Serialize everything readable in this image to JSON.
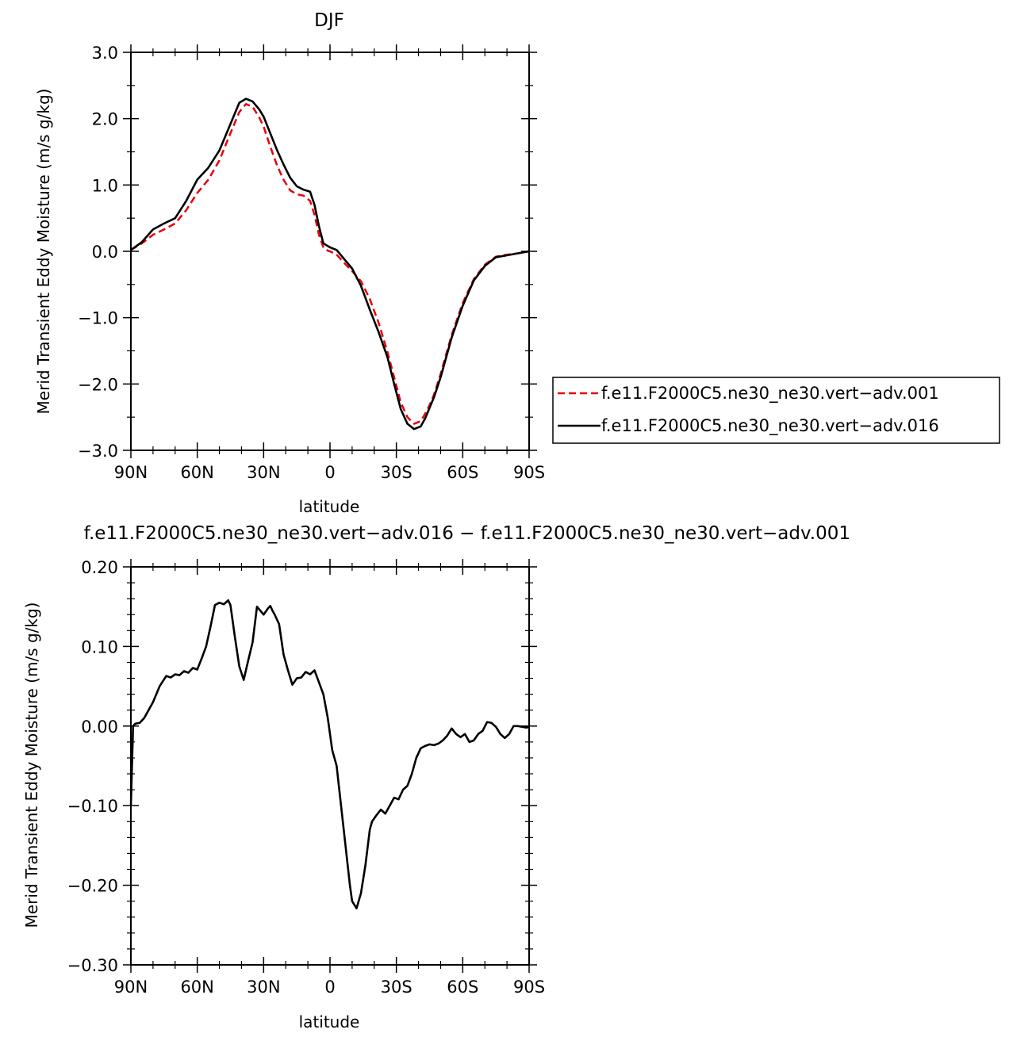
{
  "chart_data": [
    {
      "type": "line",
      "title": "DJF",
      "xlabel": "latitude",
      "ylabel": "Merid Transient Eddy Moisture (m/s g/kg)",
      "xlim": [
        -90,
        90
      ],
      "ylim": [
        -3.0,
        3.0
      ],
      "x_tick_values": [
        -90,
        -60,
        -30,
        0,
        30,
        60,
        90
      ],
      "x_tick_labels": [
        "90N",
        "60N",
        "30N",
        "0",
        "30S",
        "60S",
        "90S"
      ],
      "y_tick_values": [
        -3,
        -2,
        -1,
        0,
        1,
        2,
        3
      ],
      "y_tick_labels": [
        "−3.0",
        "−2.0",
        "−1.0",
        "0.0",
        "1.0",
        "2.0",
        "3.0"
      ],
      "grid": false,
      "legend_position": "right",
      "series": [
        {
          "name": "f.e11.F2000C5.ne30_ne30.vert−adv.001",
          "color": "#e8000b",
          "dash": "dashed",
          "x": [
            -90,
            -85,
            -80,
            -75,
            -70,
            -65,
            -60,
            -55,
            -50,
            -45,
            -41,
            -38,
            -35,
            -32,
            -30,
            -27,
            -24,
            -21,
            -18,
            -15,
            -12,
            -9,
            -7,
            -5,
            -3,
            -1,
            0,
            3,
            6,
            10,
            14,
            18,
            22,
            26,
            29,
            32,
            35,
            38,
            41,
            43,
            45,
            47,
            50,
            55,
            60,
            65,
            70,
            75,
            80,
            85,
            90
          ],
          "y": [
            0.02,
            0.12,
            0.25,
            0.33,
            0.42,
            0.62,
            0.88,
            1.08,
            1.37,
            1.78,
            2.1,
            2.22,
            2.18,
            2.02,
            1.88,
            1.58,
            1.3,
            1.08,
            0.92,
            0.86,
            0.84,
            0.76,
            0.55,
            0.25,
            0.06,
            0.01,
            0.0,
            -0.05,
            -0.16,
            -0.3,
            -0.45,
            -0.72,
            -1.08,
            -1.52,
            -1.9,
            -2.28,
            -2.5,
            -2.6,
            -2.56,
            -2.45,
            -2.32,
            -2.16,
            -1.85,
            -1.26,
            -0.78,
            -0.42,
            -0.2,
            -0.08,
            -0.05,
            -0.03,
            0.0
          ]
        },
        {
          "name": "f.e11.F2000C5.ne30_ne30.vert−adv.016",
          "color": "#000000",
          "dash": "solid",
          "x": [
            -90,
            -85,
            -80,
            -75,
            -70,
            -65,
            -60,
            -55,
            -50,
            -45,
            -41,
            -38,
            -35,
            -32,
            -30,
            -27,
            -24,
            -21,
            -18,
            -15,
            -12,
            -9,
            -7,
            -5,
            -3,
            -1,
            0,
            3,
            6,
            10,
            14,
            18,
            22,
            26,
            29,
            32,
            35,
            38,
            41,
            43,
            45,
            47,
            50,
            55,
            60,
            65,
            70,
            75,
            80,
            85,
            90
          ],
          "y": [
            0.02,
            0.14,
            0.33,
            0.42,
            0.5,
            0.76,
            1.08,
            1.26,
            1.52,
            1.92,
            2.24,
            2.3,
            2.26,
            2.14,
            2.03,
            1.78,
            1.53,
            1.31,
            1.11,
            0.98,
            0.93,
            0.9,
            0.7,
            0.38,
            0.12,
            0.08,
            0.06,
            0.02,
            -0.1,
            -0.26,
            -0.52,
            -0.88,
            -1.22,
            -1.6,
            -2.0,
            -2.38,
            -2.6,
            -2.68,
            -2.64,
            -2.52,
            -2.36,
            -2.2,
            -1.9,
            -1.3,
            -0.82,
            -0.44,
            -0.22,
            -0.09,
            -0.06,
            -0.03,
            0.0
          ]
        }
      ]
    },
    {
      "type": "line",
      "title": "f.e11.F2000C5.ne30_ne30.vert−adv.016 − f.e11.F2000C5.ne30_ne30.vert−adv.001",
      "xlabel": "latitude",
      "ylabel": "Merid Transient Eddy Moisture (m/s g/kg)",
      "xlim": [
        -90,
        90
      ],
      "ylim": [
        -0.3,
        0.2
      ],
      "x_tick_values": [
        -90,
        -60,
        -30,
        0,
        30,
        60,
        90
      ],
      "x_tick_labels": [
        "90N",
        "60N",
        "30N",
        "0",
        "30S",
        "60S",
        "90S"
      ],
      "y_tick_values": [
        -0.3,
        -0.2,
        -0.1,
        0.0,
        0.1,
        0.2
      ],
      "y_tick_labels": [
        "−0.30",
        "−0.20",
        "−0.10",
        "0.00",
        "0.10",
        "0.20"
      ],
      "grid": false,
      "series": [
        {
          "color": "#000000",
          "dash": "solid",
          "x": [
            -90,
            -89,
            -88,
            -86,
            -84,
            -80,
            -77,
            -74,
            -72,
            -70,
            -68,
            -66,
            -64,
            -62,
            -60,
            -58,
            -56,
            -54,
            -52,
            -50,
            -48,
            -46,
            -45,
            -43,
            -41,
            -39,
            -37,
            -35,
            -33,
            -30,
            -28,
            -27,
            -26,
            -25,
            -23,
            -21,
            -19,
            -17,
            -15,
            -13,
            -11,
            -9,
            -7,
            -5,
            -3,
            -1,
            1,
            3,
            5,
            7,
            9,
            10,
            12,
            14,
            16,
            18,
            19,
            21,
            23,
            25,
            27,
            29,
            31,
            33,
            35,
            37,
            39,
            41,
            43,
            45,
            47,
            49,
            51,
            53,
            55,
            57,
            59,
            61,
            63,
            65,
            67,
            69,
            71,
            73,
            75,
            77,
            79,
            81,
            83,
            85,
            87,
            89,
            90
          ],
          "y": [
            -0.1,
            0.0,
            0.003,
            0.004,
            0.01,
            0.03,
            0.05,
            0.063,
            0.061,
            0.065,
            0.064,
            0.069,
            0.067,
            0.073,
            0.071,
            0.085,
            0.1,
            0.125,
            0.152,
            0.155,
            0.153,
            0.158,
            0.152,
            0.112,
            0.075,
            0.058,
            0.082,
            0.105,
            0.15,
            0.14,
            0.148,
            0.151,
            0.145,
            0.14,
            0.128,
            0.09,
            0.07,
            0.052,
            0.06,
            0.061,
            0.068,
            0.065,
            0.07,
            0.055,
            0.04,
            0.01,
            -0.03,
            -0.05,
            -0.1,
            -0.15,
            -0.2,
            -0.22,
            -0.229,
            -0.21,
            -0.175,
            -0.13,
            -0.12,
            -0.112,
            -0.105,
            -0.11,
            -0.1,
            -0.09,
            -0.092,
            -0.08,
            -0.075,
            -0.06,
            -0.04,
            -0.028,
            -0.025,
            -0.023,
            -0.024,
            -0.022,
            -0.018,
            -0.012,
            -0.003,
            -0.01,
            -0.014,
            -0.01,
            -0.02,
            -0.018,
            -0.01,
            -0.006,
            0.005,
            0.004,
            -0.001,
            -0.01,
            -0.015,
            -0.01,
            0.0,
            0.0,
            -0.001,
            -0.002,
            0.0
          ]
        }
      ]
    }
  ]
}
